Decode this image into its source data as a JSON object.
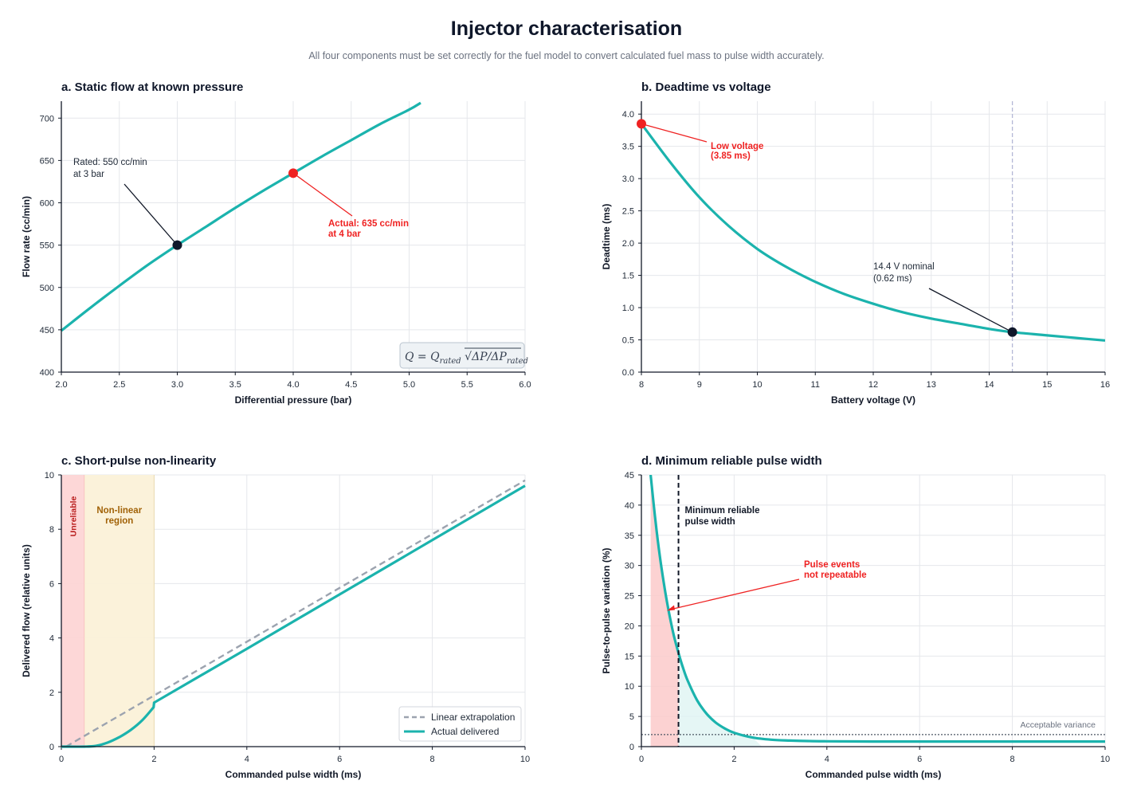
{
  "title": "Injector characterisation",
  "subtitle": "All four components must be set correctly for the fuel model to convert calculated fuel mass to pulse width accurately.",
  "colors": {
    "teal": "#1bb3ad",
    "red": "#ef2222",
    "dark": "#0f172a",
    "dashed_gray": "#9ca3af",
    "red_band": "#fdd5d5",
    "amber_band": "#fbf1d8"
  },
  "chart_data": [
    {
      "id": "a",
      "type": "line",
      "title": "a. Static flow at known pressure",
      "xlabel": "Differential pressure (bar)",
      "ylabel": "Flow rate (cc/min)",
      "xlim": [
        2.0,
        6.0
      ],
      "ylim": [
        400,
        720
      ],
      "xticks": [
        "2.0",
        "2.5",
        "3.0",
        "3.5",
        "4.0",
        "4.5",
        "5.0",
        "5.5",
        "6.0"
      ],
      "yticks": [
        "400",
        "450",
        "500",
        "550",
        "600",
        "650",
        "700"
      ],
      "grid": true,
      "series": [
        {
          "x": [
            2.0,
            2.25,
            2.5,
            2.75,
            3.0,
            3.25,
            3.5,
            3.75,
            4.0,
            4.25,
            4.5,
            4.75,
            5.0,
            5.1
          ],
          "values": [
            449,
            476,
            502,
            527,
            550,
            572,
            594,
            615,
            635,
            655,
            674,
            693,
            710,
            718
          ]
        }
      ],
      "points": [
        {
          "x": 3.0,
          "y": 550,
          "color": "dark",
          "label": [
            "Rated: 550 cc/min",
            "at 3 bar"
          ]
        },
        {
          "x": 4.0,
          "y": 635,
          "color": "red",
          "label": [
            "Actual: 635 cc/min",
            "at 4 bar"
          ]
        }
      ],
      "formula": "Q = Q_rated √(ΔP/ΔP_rated)"
    },
    {
      "id": "b",
      "type": "line",
      "title": "b. Deadtime vs voltage",
      "xlabel": "Battery voltage (V)",
      "ylabel": "Deadtime (ms)",
      "xlim": [
        8,
        16
      ],
      "ylim": [
        0.0,
        4.2
      ],
      "xticks": [
        "8",
        "9",
        "10",
        "11",
        "12",
        "13",
        "14",
        "15",
        "16"
      ],
      "yticks": [
        "0.0",
        "0.5",
        "1.0",
        "1.5",
        "2.0",
        "2.5",
        "3.0",
        "3.5",
        "4.0"
      ],
      "grid": true,
      "series": [
        {
          "x": [
            8,
            8.5,
            9,
            9.5,
            10,
            10.5,
            11,
            11.5,
            12,
            12.5,
            13,
            13.5,
            14,
            14.4,
            15,
            15.5,
            16
          ],
          "values": [
            3.85,
            3.25,
            2.71,
            2.27,
            1.91,
            1.63,
            1.4,
            1.21,
            1.06,
            0.93,
            0.83,
            0.75,
            0.67,
            0.62,
            0.57,
            0.53,
            0.49
          ]
        }
      ],
      "points": [
        {
          "x": 8,
          "y": 3.85,
          "color": "red",
          "label": [
            "Low voltage",
            "(3.85 ms)"
          ]
        },
        {
          "x": 14.4,
          "y": 0.62,
          "color": "dark",
          "label": [
            "14.4 V nominal",
            "(0.62 ms)"
          ]
        }
      ],
      "vline": 14.4
    },
    {
      "id": "c",
      "type": "line",
      "title": "c. Short-pulse non-linearity",
      "xlabel": "Commanded pulse width (ms)",
      "ylabel": "Delivered flow (relative units)",
      "xlim": [
        0,
        10
      ],
      "ylim": [
        0,
        10
      ],
      "xticks": [
        "0",
        "2",
        "4",
        "6",
        "8",
        "10"
      ],
      "yticks": [
        "0",
        "2",
        "4",
        "6",
        "8",
        "10"
      ],
      "grid": true,
      "bands": [
        {
          "from": 0,
          "to": 0.5,
          "color": "red_band",
          "label": "Unreliable"
        },
        {
          "from": 0.5,
          "to": 2.0,
          "color": "amber_band",
          "label": [
            "Non-linear",
            "region"
          ]
        }
      ],
      "series": [
        {
          "name": "Linear extrapolation",
          "style": "dashed",
          "x": [
            0.1,
            10
          ],
          "values": [
            0,
            9.8
          ]
        },
        {
          "name": "Actual delivered",
          "style": "solid",
          "x": [
            0,
            0.5,
            0.75,
            1.0,
            1.25,
            1.5,
            1.75,
            1.99,
            2.0,
            4,
            6,
            8,
            10
          ],
          "values": [
            0,
            0,
            0.03,
            0.15,
            0.35,
            0.62,
            0.98,
            1.45,
            1.62,
            3.6,
            5.6,
            7.6,
            9.6
          ]
        }
      ],
      "legend": "bottom-right"
    },
    {
      "id": "d",
      "type": "line",
      "title": "d. Minimum reliable pulse width",
      "xlabel": "Commanded pulse width (ms)",
      "ylabel": "Pulse-to-pulse variation (%)",
      "xlim": [
        0,
        10
      ],
      "ylim": [
        0,
        45
      ],
      "xticks": [
        "0",
        "2",
        "4",
        "6",
        "8",
        "10"
      ],
      "yticks": [
        "0",
        "5",
        "10",
        "15",
        "20",
        "25",
        "30",
        "35",
        "40",
        "45"
      ],
      "grid": true,
      "series": [
        {
          "x": [
            0.2,
            0.3,
            0.4,
            0.5,
            0.6,
            0.7,
            0.8,
            0.9,
            1.0,
            1.2,
            1.4,
            1.6,
            1.8,
            2.0,
            2.4,
            2.8,
            3.2,
            3.6,
            4,
            5,
            6,
            8,
            10
          ],
          "values": [
            45,
            37.6,
            31.4,
            26.3,
            22.0,
            18.4,
            15.5,
            13.0,
            10.9,
            7.7,
            5.5,
            4.0,
            3.0,
            2.3,
            1.5,
            1.15,
            1.0,
            0.92,
            0.88,
            0.85,
            0.85,
            0.85,
            0.85
          ]
        }
      ],
      "threshold": {
        "y": 2,
        "label": "Acceptable variance"
      },
      "min_pulse": {
        "x": 0.8,
        "label": [
          "Minimum reliable",
          "pulse width"
        ]
      },
      "shade_red": [
        0.2,
        0.8
      ],
      "annotation": {
        "label": [
          "Pulse events",
          "not repeatable"
        ],
        "target": [
          0.55,
          22.5
        ]
      }
    }
  ]
}
